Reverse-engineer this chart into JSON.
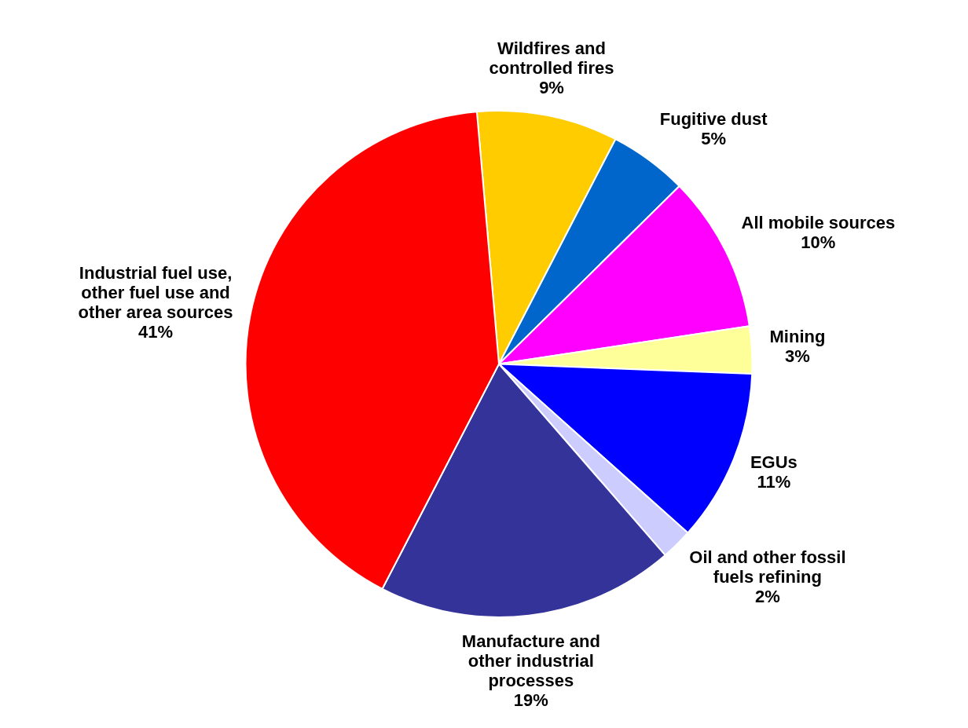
{
  "chart_data": {
    "type": "pie",
    "categories": [
      "Wildfires and controlled fires",
      "Fugitive dust",
      "All mobile sources",
      "Mining",
      "EGUs",
      "Oil and other fossil fuels refining",
      "Manufacture and other industrial processes",
      "Industrial fuel use, other fuel use and other area sources"
    ],
    "values": [
      9,
      5,
      10,
      3,
      11,
      2,
      19,
      41
    ],
    "colors": [
      "#ffcc00",
      "#0066cc",
      "#ff00ff",
      "#ffff99",
      "#0000ff",
      "#ccccff",
      "#333399",
      "#ff0000"
    ],
    "value_labels": [
      "9%",
      "5%",
      "10%",
      "3%",
      "11%",
      "2%",
      "19%",
      "41%"
    ],
    "legend": false
  }
}
